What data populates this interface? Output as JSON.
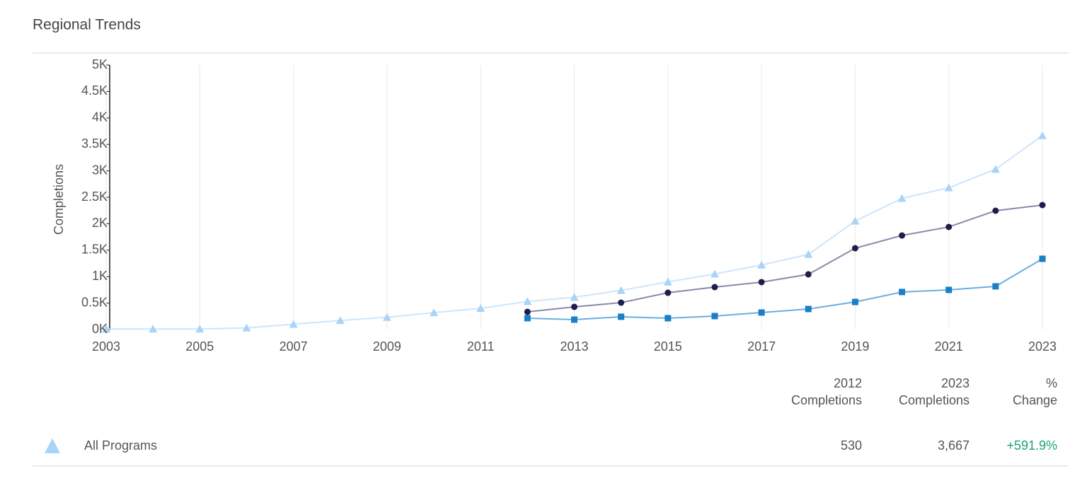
{
  "title": "Regional Trends",
  "chart_data": {
    "type": "line",
    "y_label": "Completions",
    "x": [
      2003,
      2004,
      2005,
      2006,
      2007,
      2008,
      2009,
      2010,
      2011,
      2012,
      2013,
      2014,
      2015,
      2016,
      2017,
      2018,
      2019,
      2020,
      2021,
      2022,
      2023
    ],
    "xlim": [
      2003,
      2023
    ],
    "xticks": [
      2003,
      2005,
      2007,
      2009,
      2011,
      2013,
      2015,
      2017,
      2019,
      2021,
      2023
    ],
    "xgrid": true,
    "ylim": [
      0,
      5000
    ],
    "yticks": [
      {
        "value": 0,
        "label": "0K"
      },
      {
        "value": 500,
        "label": "0.5K"
      },
      {
        "value": 1000,
        "label": "1K"
      },
      {
        "value": 1500,
        "label": "1.5K"
      },
      {
        "value": 2000,
        "label": "2K"
      },
      {
        "value": 2500,
        "label": "2.5K"
      },
      {
        "value": 3000,
        "label": "3K"
      },
      {
        "value": 3500,
        "label": "3.5K"
      },
      {
        "value": 4000,
        "label": "4K"
      },
      {
        "value": 4500,
        "label": "4.5K"
      },
      {
        "value": 5000,
        "label": "5K"
      }
    ],
    "series": [
      {
        "name": "All Programs",
        "color": "#a9d3f7",
        "line_color": "#cfe5fa",
        "marker": "triangle",
        "values": [
          10,
          10,
          10,
          30,
          100,
          170,
          230,
          320,
          400,
          530,
          610,
          740,
          900,
          1050,
          1220,
          1420,
          2050,
          2480,
          2680,
          3030,
          3667
        ]
      },
      {
        "color": "#1e1e4c",
        "line_color": "#8c88aa",
        "marker": "circle",
        "values": [
          null,
          null,
          null,
          null,
          null,
          null,
          null,
          null,
          null,
          334,
          428,
          508,
          695,
          802,
          896,
          1043,
          1537,
          1778,
          1939,
          2246,
          2353
        ]
      },
      {
        "color": "#1a7fc4",
        "line_color": "#6aaee0",
        "marker": "square",
        "values": [
          null,
          null,
          null,
          null,
          null,
          null,
          null,
          null,
          null,
          214,
          187,
          241,
          214,
          254,
          321,
          388,
          521,
          709,
          749,
          816,
          1337
        ]
      }
    ]
  },
  "table": {
    "columns": [
      [
        "2012",
        "Completions"
      ],
      [
        "2023",
        "Completions"
      ],
      [
        "%",
        "Change"
      ]
    ],
    "rows": [
      {
        "name": "All Programs",
        "cells": [
          "530",
          "3,667",
          "+591.9%"
        ]
      }
    ]
  }
}
